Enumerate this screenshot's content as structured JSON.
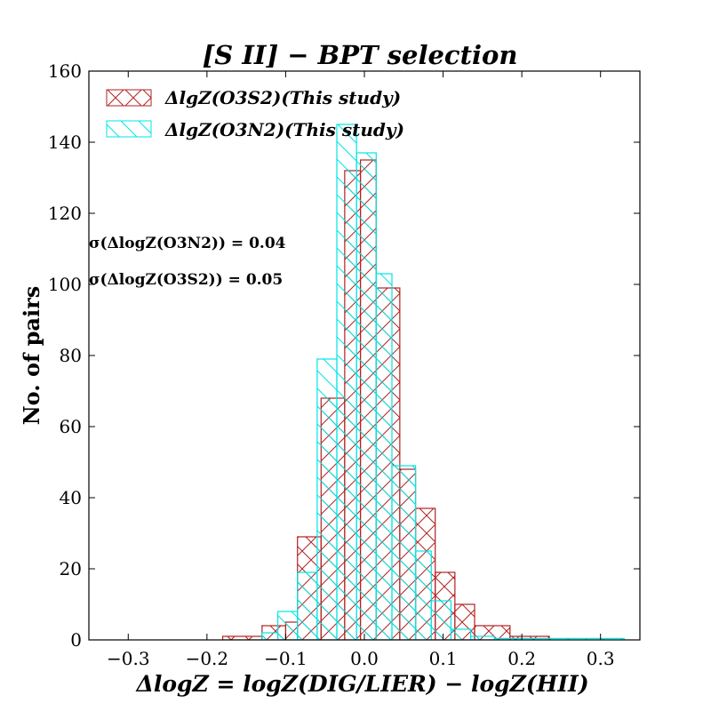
{
  "chart_data": {
    "type": "histogram",
    "title": "[S II] − BPT selection",
    "xlabel": "ΔlogZ = logZ(DIG/LIER) − logZ(HII)",
    "ylabel": "No. of pairs",
    "xlim": [
      -0.35,
      0.35
    ],
    "ylim": [
      0,
      160
    ],
    "xticks": [
      -0.3,
      -0.2,
      -0.1,
      0.0,
      0.1,
      0.2,
      0.3
    ],
    "xtick_labels": [
      "−0.3",
      "−0.2",
      "−0.1",
      "0.0",
      "0.1",
      "0.2",
      "0.3"
    ],
    "yticks": [
      0,
      20,
      40,
      60,
      80,
      100,
      120,
      140,
      160
    ],
    "ytick_labels": [
      "0",
      "20",
      "40",
      "60",
      "80",
      "100",
      "120",
      "140",
      "160"
    ],
    "grid": false,
    "legend_position": "top-left",
    "series": [
      {
        "name": "ΔlgZ(O3S2)(This study)",
        "color": "#b22222",
        "hatch": "crosshatch",
        "bins": [
          {
            "left": -0.18,
            "right": -0.13,
            "count": 1
          },
          {
            "left": -0.13,
            "right": -0.1,
            "count": 4
          },
          {
            "left": -0.1,
            "right": -0.085,
            "count": 5
          },
          {
            "left": -0.085,
            "right": -0.055,
            "count": 29
          },
          {
            "left": -0.055,
            "right": -0.025,
            "count": 68
          },
          {
            "left": -0.025,
            "right": -0.005,
            "count": 132
          },
          {
            "left": -0.005,
            "right": 0.015,
            "count": 135
          },
          {
            "left": 0.015,
            "right": 0.045,
            "count": 99
          },
          {
            "left": 0.045,
            "right": 0.065,
            "count": 48
          },
          {
            "left": 0.065,
            "right": 0.09,
            "count": 37
          },
          {
            "left": 0.09,
            "right": 0.115,
            "count": 19
          },
          {
            "left": 0.115,
            "right": 0.14,
            "count": 10
          },
          {
            "left": 0.14,
            "right": 0.185,
            "count": 4
          },
          {
            "left": 0.185,
            "right": 0.235,
            "count": 1
          }
        ]
      },
      {
        "name": "ΔlgZ(O3N2)(This study)",
        "color": "#00e5e5",
        "hatch": "diagonal",
        "bins": [
          {
            "left": -0.13,
            "right": -0.11,
            "count": 2
          },
          {
            "left": -0.11,
            "right": -0.085,
            "count": 8
          },
          {
            "left": -0.085,
            "right": -0.06,
            "count": 19
          },
          {
            "left": -0.06,
            "right": -0.035,
            "count": 79
          },
          {
            "left": -0.035,
            "right": -0.01,
            "count": 145
          },
          {
            "left": -0.01,
            "right": 0.015,
            "count": 137
          },
          {
            "left": 0.015,
            "right": 0.035,
            "count": 103
          },
          {
            "left": 0.035,
            "right": 0.065,
            "count": 49
          },
          {
            "left": 0.065,
            "right": 0.085,
            "count": 25
          },
          {
            "left": 0.085,
            "right": 0.11,
            "count": 11
          },
          {
            "left": 0.11,
            "right": 0.135,
            "count": 3
          },
          {
            "left": 0.135,
            "right": 0.165,
            "count": 1
          },
          {
            "left": 0.165,
            "right": 0.33,
            "count": 0.4
          }
        ]
      }
    ],
    "annotations": [
      "σ(ΔlogZ(O3N2)) = 0.04",
      "σ(ΔlogZ(O3S2)) = 0.05"
    ]
  }
}
